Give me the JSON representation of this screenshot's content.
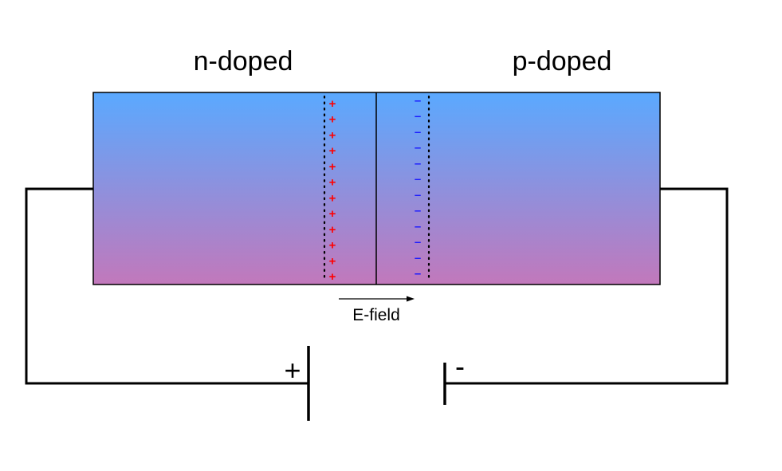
{
  "labels": {
    "n_region": "n-doped",
    "p_region": "p-doped",
    "efield": "E-field",
    "positive_terminal": "+",
    "negative_terminal": "-"
  },
  "charges": {
    "positive_symbol": "+",
    "negative_symbol": "–",
    "positive_count": 12,
    "negative_count": 12,
    "positive_color": "#ff0000",
    "negative_color": "#1a1aff"
  },
  "colors": {
    "gradient_top": "#5aa9ff",
    "gradient_bottom": "#c278bb",
    "wire": "#000000",
    "depletion_boundary": "#000000"
  }
}
